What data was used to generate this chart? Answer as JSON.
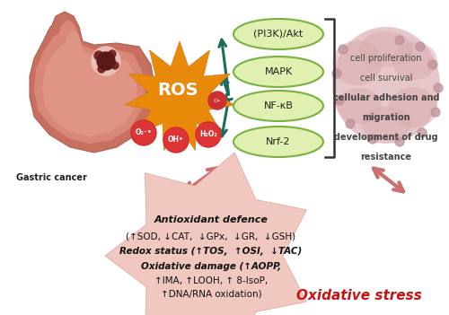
{
  "background_color": "#ffffff",
  "gastric_cancer_label": "Gastric cancer",
  "ros_label": "ROS",
  "signaling_molecules": [
    "(PI3K)/Akt",
    "MAPK",
    "NF-κB",
    "Nrf-2"
  ],
  "cell_effects": [
    "cell proliferation",
    "cell survival",
    "cellular adhesion and",
    "migration",
    "development of drug",
    "resistance"
  ],
  "antioxidant_line1": "Antioxidant defence",
  "antioxidant_line2": "(↑SOD, ↓CAT,  ↓GPx,  ↓GR,  ↓GSH)",
  "redox_line1": "Redox status (↑TOS,  ↑OSI,  ↓TAC)",
  "oxidative_line1": "Oxidative damage (↑AOPP,",
  "oxidative_line2": "↑IMA, ↑LOOH, ↑ 8-IsoP,",
  "oxidative_line3": "↑DNA/RNA oxidation)",
  "oxidative_stress_label": "Oxidative stress",
  "arrow_color": "#1a6b5a",
  "ros_color": "#e8890a",
  "pink_star_color": "#f0c8c0",
  "pink_arrow_color": "#c97070",
  "oval_fill": "#dff0b0",
  "oval_border": "#7ab040",
  "blob_color": "#d8aaac",
  "small_molecules": [
    "O₂⁻•",
    "OH•",
    "H₂O₂"
  ],
  "red_text_color": "#cc1111",
  "stomach_outer": "#c87060",
  "stomach_inner": "#d98878",
  "stomach_inner2": "#e8a090"
}
